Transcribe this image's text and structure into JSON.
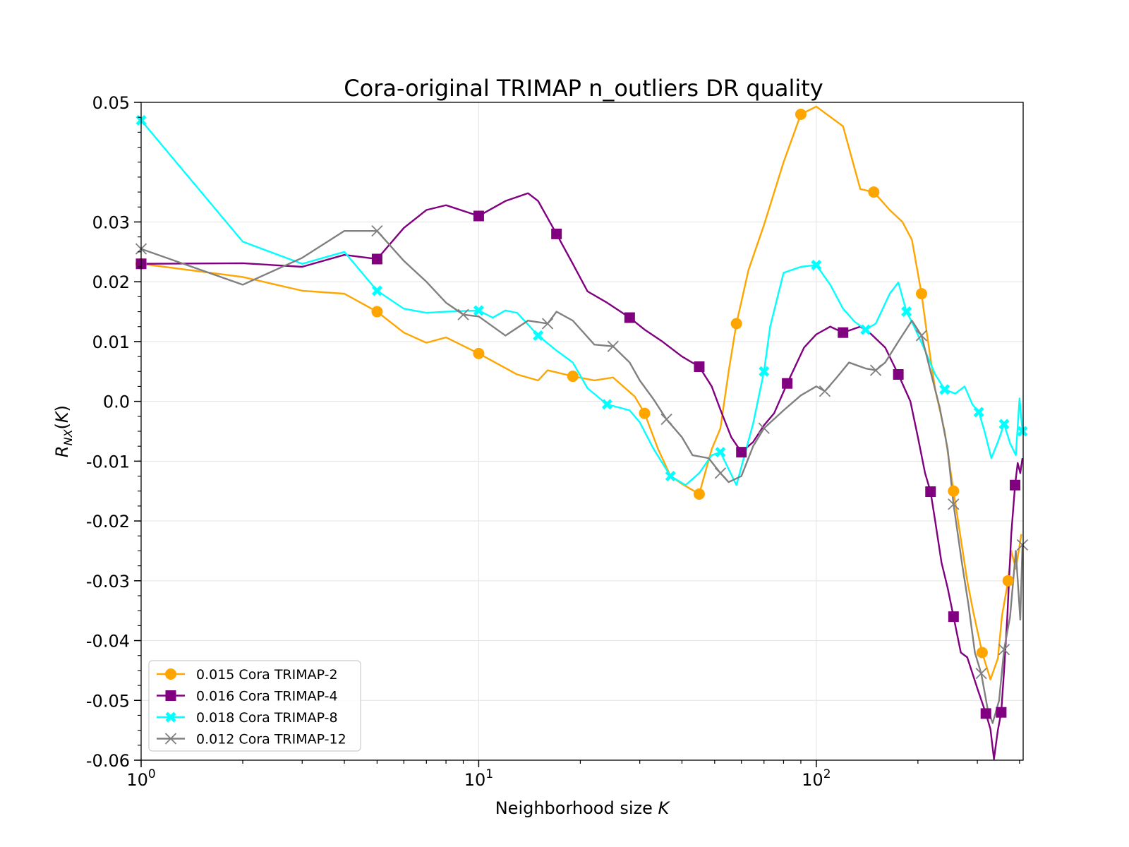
{
  "chart_data": {
    "type": "line",
    "title": "Cora-original TRIMAP n_outliers DR quality",
    "xlabel": "Neighborhood size K",
    "ylabel": "R_NX(K)",
    "x_scale": "log",
    "xlim": [
      1,
      410
    ],
    "ylim": [
      -0.06,
      0.05
    ],
    "x_ticks": [
      {
        "value": 1,
        "base": "10",
        "exp": "0"
      },
      {
        "value": 10,
        "base": "10",
        "exp": "1"
      },
      {
        "value": 100,
        "base": "10",
        "exp": "2"
      }
    ],
    "y_ticks": [
      {
        "value": 0.05,
        "label": "0.05"
      },
      {
        "value": 0.03,
        "label": "0.03"
      },
      {
        "value": 0.02,
        "label": "0.02"
      },
      {
        "value": 0.01,
        "label": "0.01"
      },
      {
        "value": 0.0,
        "label": "0.0"
      },
      {
        "value": -0.01,
        "label": "-0.01"
      },
      {
        "value": -0.02,
        "label": "-0.02"
      },
      {
        "value": -0.03,
        "label": "-0.03"
      },
      {
        "value": -0.04,
        "label": "-0.04"
      },
      {
        "value": -0.05,
        "label": "-0.05"
      },
      {
        "value": -0.06,
        "label": "-0.06"
      }
    ],
    "grid": true,
    "legend_position": "lower-left",
    "series": [
      {
        "name": "0.015 Cora TRIMAP-2",
        "color": "#FFA500",
        "marker": "circle",
        "points": [
          [
            1,
            0.023
          ],
          [
            2,
            0.0208
          ],
          [
            3,
            0.0185
          ],
          [
            4,
            0.018
          ],
          [
            5,
            0.015
          ],
          [
            6,
            0.0115
          ],
          [
            7,
            0.0098
          ],
          [
            8,
            0.0107
          ],
          [
            10,
            0.008
          ],
          [
            13,
            0.0045
          ],
          [
            15,
            0.0035
          ],
          [
            16,
            0.0052
          ],
          [
            19,
            0.0042
          ],
          [
            22,
            0.0035
          ],
          [
            25,
            0.004
          ],
          [
            29,
            0.0008
          ],
          [
            31,
            -0.002
          ],
          [
            34,
            -0.008
          ],
          [
            37,
            -0.0125
          ],
          [
            40,
            -0.0138
          ],
          [
            45,
            -0.0155
          ],
          [
            49,
            -0.008
          ],
          [
            52,
            -0.0045
          ],
          [
            55,
            0.005
          ],
          [
            58,
            0.013
          ],
          [
            63,
            0.022
          ],
          [
            70,
            0.0295
          ],
          [
            80,
            0.04
          ],
          [
            90,
            0.048
          ],
          [
            100,
            0.0493
          ],
          [
            120,
            0.046
          ],
          [
            135,
            0.0355
          ],
          [
            148,
            0.035
          ],
          [
            165,
            0.032
          ],
          [
            180,
            0.03
          ],
          [
            192,
            0.027
          ],
          [
            205,
            0.018
          ],
          [
            213,
            0.011
          ],
          [
            225,
            0.002
          ],
          [
            240,
            -0.005
          ],
          [
            255,
            -0.015
          ],
          [
            265,
            -0.0212
          ],
          [
            280,
            -0.03
          ],
          [
            292,
            -0.0353
          ],
          [
            310,
            -0.042
          ],
          [
            328,
            -0.0465
          ],
          [
            345,
            -0.043
          ],
          [
            355,
            -0.0358
          ],
          [
            370,
            -0.03
          ],
          [
            378,
            -0.025
          ],
          [
            390,
            -0.028
          ],
          [
            405,
            -0.0222
          ]
        ]
      },
      {
        "name": "0.016 Cora TRIMAP-4",
        "color": "#800080",
        "marker": "square",
        "points": [
          [
            1,
            0.023
          ],
          [
            2,
            0.0231
          ],
          [
            3,
            0.0225
          ],
          [
            4,
            0.0245
          ],
          [
            5,
            0.0238
          ],
          [
            6,
            0.029
          ],
          [
            7,
            0.032
          ],
          [
            8,
            0.0328
          ],
          [
            10,
            0.031
          ],
          [
            12,
            0.0335
          ],
          [
            14,
            0.0348
          ],
          [
            15,
            0.0335
          ],
          [
            17,
            0.028
          ],
          [
            19,
            0.023
          ],
          [
            21,
            0.0184
          ],
          [
            24,
            0.0165
          ],
          [
            28,
            0.014
          ],
          [
            31,
            0.012
          ],
          [
            35,
            0.01
          ],
          [
            40,
            0.0075
          ],
          [
            45,
            0.0058
          ],
          [
            49,
            0.0025
          ],
          [
            52,
            -0.0014
          ],
          [
            56,
            -0.006
          ],
          [
            60,
            -0.0085
          ],
          [
            65,
            -0.0068
          ],
          [
            70,
            -0.004
          ],
          [
            75,
            -0.002
          ],
          [
            82,
            0.003
          ],
          [
            92,
            0.009
          ],
          [
            100,
            0.0112
          ],
          [
            110,
            0.0125
          ],
          [
            120,
            0.0115
          ],
          [
            135,
            0.0125
          ],
          [
            145,
            0.0113
          ],
          [
            160,
            0.009
          ],
          [
            175,
            0.0045
          ],
          [
            190,
            0.0
          ],
          [
            200,
            -0.006
          ],
          [
            210,
            -0.012
          ],
          [
            218,
            -0.0151
          ],
          [
            225,
            -0.02
          ],
          [
            235,
            -0.027
          ],
          [
            245,
            -0.0312
          ],
          [
            255,
            -0.036
          ],
          [
            268,
            -0.042
          ],
          [
            280,
            -0.0428
          ],
          [
            300,
            -0.048
          ],
          [
            318,
            -0.0522
          ],
          [
            328,
            -0.0548
          ],
          [
            336,
            -0.0598
          ],
          [
            345,
            -0.055
          ],
          [
            353,
            -0.052
          ],
          [
            360,
            -0.045
          ],
          [
            368,
            -0.036
          ],
          [
            378,
            -0.0222
          ],
          [
            388,
            -0.014
          ],
          [
            395,
            -0.0103
          ],
          [
            402,
            -0.012
          ],
          [
            408,
            -0.0095
          ]
        ]
      },
      {
        "name": "0.018 Cora TRIMAP-8",
        "color": "#00FFFF",
        "marker": "x-filled",
        "points": [
          [
            1,
            0.047
          ],
          [
            2,
            0.0267
          ],
          [
            3,
            0.023
          ],
          [
            4,
            0.025
          ],
          [
            5,
            0.0185
          ],
          [
            6,
            0.0155
          ],
          [
            7,
            0.0148
          ],
          [
            8,
            0.015
          ],
          [
            10,
            0.0152
          ],
          [
            11,
            0.014
          ],
          [
            12,
            0.0152
          ],
          [
            13,
            0.0148
          ],
          [
            15,
            0.011
          ],
          [
            17,
            0.0085
          ],
          [
            19,
            0.0065
          ],
          [
            21,
            0.0022
          ],
          [
            24,
            -0.0005
          ],
          [
            28,
            -0.0015
          ],
          [
            30,
            -0.0035
          ],
          [
            33,
            -0.008
          ],
          [
            37,
            -0.0125
          ],
          [
            41,
            -0.014
          ],
          [
            45,
            -0.012
          ],
          [
            49,
            -0.009
          ],
          [
            52,
            -0.0085
          ],
          [
            58,
            -0.014
          ],
          [
            62,
            -0.008
          ],
          [
            65,
            -0.0037
          ],
          [
            70,
            0.005
          ],
          [
            73,
            0.0125
          ],
          [
            80,
            0.0215
          ],
          [
            90,
            0.0225
          ],
          [
            100,
            0.0228
          ],
          [
            110,
            0.0195
          ],
          [
            120,
            0.0155
          ],
          [
            130,
            0.0133
          ],
          [
            140,
            0.012
          ],
          [
            150,
            0.013
          ],
          [
            165,
            0.018
          ],
          [
            175,
            0.0199
          ],
          [
            185,
            0.015
          ],
          [
            195,
            0.0125
          ],
          [
            210,
            0.0085
          ],
          [
            225,
            0.0045
          ],
          [
            240,
            0.002
          ],
          [
            258,
            0.0013
          ],
          [
            275,
            0.0025
          ],
          [
            290,
            -0.0005
          ],
          [
            303,
            -0.0018
          ],
          [
            315,
            -0.005
          ],
          [
            330,
            -0.0095
          ],
          [
            345,
            -0.0068
          ],
          [
            360,
            -0.0038
          ],
          [
            375,
            -0.007
          ],
          [
            390,
            -0.009
          ],
          [
            400,
            0.0005
          ],
          [
            408,
            -0.005
          ]
        ]
      },
      {
        "name": "0.012 Cora TRIMAP-12",
        "color": "#808080",
        "marker": "x",
        "points": [
          [
            1,
            0.0255
          ],
          [
            2,
            0.0195
          ],
          [
            3,
            0.024
          ],
          [
            4,
            0.0285
          ],
          [
            5,
            0.0285
          ],
          [
            6,
            0.0235
          ],
          [
            7,
            0.02
          ],
          [
            8,
            0.0165
          ],
          [
            9,
            0.0145
          ],
          [
            10,
            0.0142
          ],
          [
            12,
            0.011
          ],
          [
            14,
            0.0135
          ],
          [
            16,
            0.013
          ],
          [
            17,
            0.015
          ],
          [
            19,
            0.0135
          ],
          [
            22,
            0.0095
          ],
          [
            25,
            0.0092
          ],
          [
            28,
            0.0065
          ],
          [
            30,
            0.0035
          ],
          [
            33,
            0.0003
          ],
          [
            36,
            -0.003
          ],
          [
            40,
            -0.006
          ],
          [
            43,
            -0.009
          ],
          [
            48,
            -0.0095
          ],
          [
            52,
            -0.012
          ],
          [
            55,
            -0.0135
          ],
          [
            60,
            -0.0125
          ],
          [
            65,
            -0.0075
          ],
          [
            70,
            -0.0045
          ],
          [
            80,
            -0.0015
          ],
          [
            90,
            0.001
          ],
          [
            100,
            0.0025
          ],
          [
            106,
            0.0017
          ],
          [
            115,
            0.004
          ],
          [
            125,
            0.0065
          ],
          [
            140,
            0.0055
          ],
          [
            150,
            0.0052
          ],
          [
            160,
            0.0065
          ],
          [
            175,
            0.01
          ],
          [
            192,
            0.0135
          ],
          [
            205,
            0.011
          ],
          [
            218,
            0.005
          ],
          [
            232,
            -0.001
          ],
          [
            245,
            -0.008
          ],
          [
            255,
            -0.0172
          ],
          [
            270,
            -0.027
          ],
          [
            282,
            -0.0338
          ],
          [
            295,
            -0.042
          ],
          [
            308,
            -0.0455
          ],
          [
            322,
            -0.0515
          ],
          [
            333,
            -0.0538
          ],
          [
            348,
            -0.05
          ],
          [
            360,
            -0.0415
          ],
          [
            375,
            -0.036
          ],
          [
            390,
            -0.025
          ],
          [
            402,
            -0.0365
          ],
          [
            408,
            -0.024
          ]
        ]
      }
    ]
  }
}
